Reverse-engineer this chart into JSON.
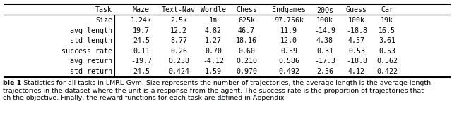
{
  "col_headers": [
    "Task",
    "Maze",
    "Text-Nav",
    "Wordle",
    "Chess",
    "Endgames",
    "20Qs",
    "Guess",
    "Car"
  ],
  "rows": [
    [
      "Size",
      "1.24k",
      "2.5k",
      "1m",
      "625k",
      "97.756k",
      "100k",
      "100k",
      "19k"
    ],
    [
      "avg length",
      "19.7",
      "12.2",
      "4.82",
      "46.7",
      "11.9",
      "-14.9",
      "-18.8",
      "16.5"
    ],
    [
      "std length",
      "24.5",
      "8.77",
      "1.27",
      "18.16",
      "12.0",
      "4.38",
      "4.57",
      "3.61"
    ],
    [
      "success rate",
      "0.11",
      "0.26",
      "0.70",
      "0.60",
      "0.59",
      "0.31",
      "0.53",
      "0.53"
    ],
    [
      "avg return",
      "-19.7",
      "0.258",
      "-4.12",
      "0.210",
      "0.586",
      "-17.3",
      "-18.8",
      "0.562"
    ],
    [
      "std return",
      "24.5",
      "0.424",
      "1.59",
      "0.970",
      "0.492",
      "2.56",
      "4.12",
      "0.422"
    ]
  ],
  "caption_parts": [
    {
      "text": "ble 1",
      "bold": true,
      "color": "#000000"
    },
    {
      "text": ": Statistics for all tasks in LMRL-Gym. Size represents the number of trajectories, the average length is the average length",
      "bold": false,
      "color": "#000000"
    }
  ],
  "caption_line2": "trajectories in the dataset where the unit is a response from the agent. The success rate is the proportion of trajectories that",
  "caption_line3a": "ch the objective. Finally, the reward functions for each task are defined in Appendix ",
  "caption_line3b": "C",
  "bg_color": "#ffffff",
  "text_color": "#000000",
  "link_color": "#4169E1",
  "table_font_size": 7.2,
  "caption_font_size": 6.8,
  "fig_width": 6.4,
  "fig_height": 1.81
}
